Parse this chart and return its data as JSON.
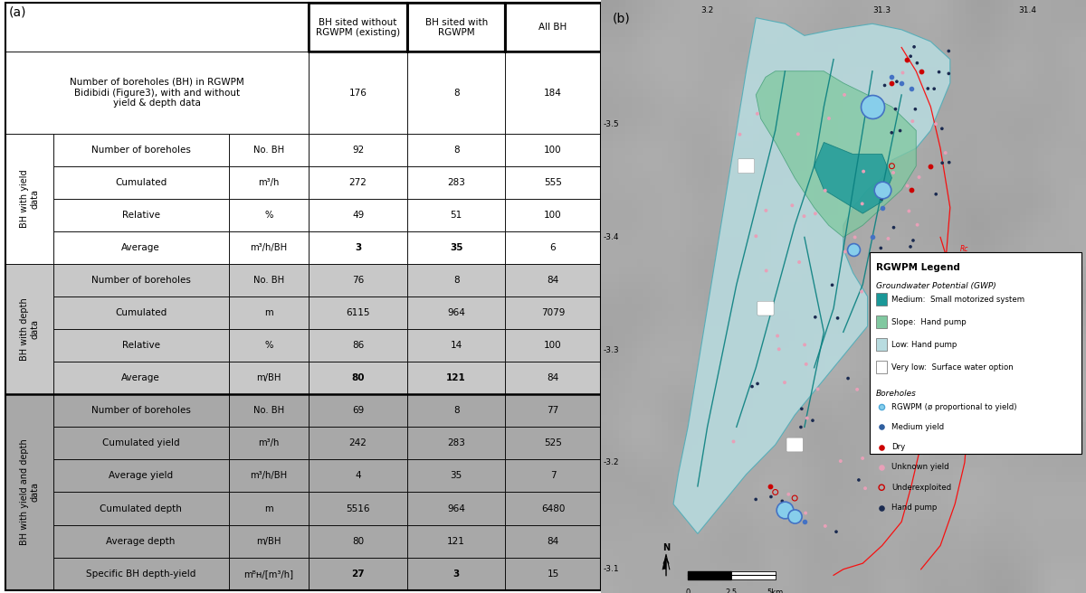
{
  "panel_a_label": "(a)",
  "panel_b_label": "(b)",
  "header_cols": [
    "BH sited without\nRGWPM (existing)",
    "BH sited with\nRGWPM",
    "All BH"
  ],
  "intro_row": {
    "label": "Number of boreholes (BH) in RGWPM\nBidibidi (Figure3), with and without\nyield & depth data",
    "values": [
      "176",
      "8",
      "184"
    ]
  },
  "section_yield": {
    "section_label": "BH with yield\ndata",
    "rows": [
      {
        "label": "Number of boreholes",
        "unit": "No. BH",
        "values": [
          "92",
          "8",
          "100"
        ],
        "bold": [
          false,
          false,
          false
        ]
      },
      {
        "label": "Cumulated",
        "unit": "m³/h",
        "values": [
          "272",
          "283",
          "555"
        ],
        "bold": [
          false,
          false,
          false
        ]
      },
      {
        "label": "Relative",
        "unit": "%",
        "values": [
          "49",
          "51",
          "100"
        ],
        "bold": [
          false,
          false,
          false
        ]
      },
      {
        "label": "Average",
        "unit": "m³/h/BH",
        "values": [
          "3",
          "35",
          "6"
        ],
        "bold": [
          true,
          true,
          false
        ]
      }
    ]
  },
  "section_depth": {
    "section_label": "BH with depth\ndata",
    "rows": [
      {
        "label": "Number of boreholes",
        "unit": "No. BH",
        "values": [
          "76",
          "8",
          "84"
        ],
        "bold": [
          false,
          false,
          false
        ]
      },
      {
        "label": "Cumulated",
        "unit": "m",
        "values": [
          "6115",
          "964",
          "7079"
        ],
        "bold": [
          false,
          false,
          false
        ]
      },
      {
        "label": "Relative",
        "unit": "%",
        "values": [
          "86",
          "14",
          "100"
        ],
        "bold": [
          false,
          false,
          false
        ]
      },
      {
        "label": "Average",
        "unit": "m/BH",
        "values": [
          "80",
          "121",
          "84"
        ],
        "bold": [
          true,
          true,
          false
        ]
      }
    ]
  },
  "section_yield_depth": {
    "section_label": "BH with yield and depth\ndata",
    "rows": [
      {
        "label": "Number of boreholes",
        "unit": "No. BH",
        "values": [
          "69",
          "8",
          "77"
        ],
        "bold": [
          false,
          false,
          false
        ]
      },
      {
        "label": "Cumulated yield",
        "unit": "m³/h",
        "values": [
          "242",
          "283",
          "525"
        ],
        "bold": [
          false,
          false,
          false
        ]
      },
      {
        "label": "Average yield",
        "unit": "m³/h/BH",
        "values": [
          "4",
          "35",
          "7"
        ],
        "bold": [
          false,
          false,
          false
        ]
      },
      {
        "label": "Cumulated depth",
        "unit": "m",
        "values": [
          "5516",
          "964",
          "6480"
        ],
        "bold": [
          false,
          false,
          false
        ]
      },
      {
        "label": "Average depth",
        "unit": "m/BH",
        "values": [
          "80",
          "121",
          "84"
        ],
        "bold": [
          false,
          false,
          false
        ]
      },
      {
        "label": "Specific BH depth-yield",
        "unit": "mᴮʜ/[m³/h]",
        "values": [
          "27",
          "3",
          "15"
        ],
        "bold": [
          true,
          true,
          false
        ]
      }
    ]
  },
  "bg_white": "#FFFFFF",
  "bg_light_gray": "#C8C8C8",
  "bg_dark_gray": "#A8A8A8",
  "border_color": "#000000",
  "coord_lon": [
    [
      "3.2",
      0.22
    ],
    [
      "31.3",
      0.58
    ],
    [
      "31.4",
      0.88
    ]
  ],
  "coord_lat": [
    [
      "-3.5",
      0.79
    ],
    [
      "-3.4",
      0.6
    ],
    [
      "-3.3",
      0.41
    ],
    [
      "-3.2",
      0.22
    ],
    [
      "-3.1",
      0.04
    ]
  ],
  "legend_gwp": [
    {
      "color": "#1A9A9A",
      "label": "Medium:  Small motorized system"
    },
    {
      "color": "#7DC8A0",
      "label": "Slope:  Hand pump"
    },
    {
      "color": "#A8D8D8",
      "label": "Low: Hand pump"
    },
    {
      "color": "#FFFFFF",
      "label": "Very low:  Surface water option"
    }
  ],
  "legend_bh": [
    {
      "color": "#4FA8D8",
      "label": "RGWPM (ø proportional to yield)",
      "open": true
    },
    {
      "color": "#2F5F9F",
      "label": "Medium yield",
      "open": false
    },
    {
      "color": "#C00000",
      "label": "Dry",
      "open": false
    },
    {
      "color": "#E8A0B0",
      "label": "Unknown yield",
      "open": false
    },
    {
      "color": "#C00000",
      "label": "Underexploited",
      "open": true
    },
    {
      "color": "#1A2F5F",
      "label": "Hand pump",
      "open": false
    }
  ]
}
